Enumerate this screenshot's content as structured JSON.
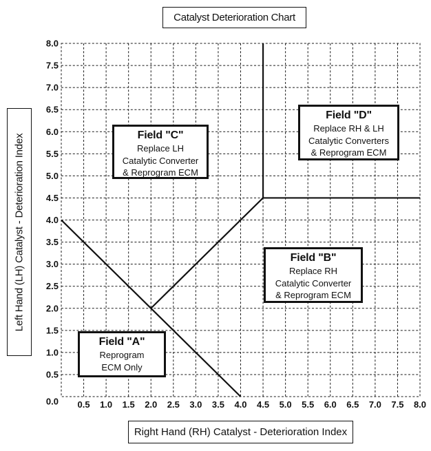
{
  "chart_data": {
    "type": "line",
    "title": "Catalyst Deterioration Chart",
    "xlabel": "Right Hand (RH) Catalyst - Deterioration Index",
    "ylabel": "Left Hand (LH) Catalyst - Deterioration Index",
    "xlim": [
      0,
      8
    ],
    "ylim": [
      0,
      8
    ],
    "tick_step": 0.5,
    "x_tick_labels": [
      "0.5",
      "1.0",
      "1.5",
      "2.0",
      "2.5",
      "3.0",
      "3.5",
      "4.0",
      "4.5",
      "5.0",
      "5.5",
      "6.0",
      "6.5",
      "7.0",
      "7.5",
      "8.0"
    ],
    "y_tick_labels": [
      "0.0",
      "0.5",
      "1.0",
      "1.5",
      "2.0",
      "2.5",
      "3.0",
      "3.5",
      "4.0",
      "4.5",
      "5.0",
      "5.5",
      "6.0",
      "6.5",
      "7.0",
      "7.5",
      "8.0"
    ],
    "grid": "dashed",
    "legend": "none",
    "boundary_lines": [
      {
        "name": "field-a-upper-boundary",
        "x1": 0,
        "y1": 4,
        "x2": 4,
        "y2": 0
      },
      {
        "name": "field-b-c-boundary",
        "x1": 2,
        "y1": 2,
        "x2": 4.5,
        "y2": 4.5
      },
      {
        "name": "field-d-left-boundary",
        "x1": 4.5,
        "y1": 4.5,
        "x2": 4.5,
        "y2": 8
      },
      {
        "name": "field-d-lower-boundary",
        "x1": 4.5,
        "y1": 4.5,
        "x2": 8,
        "y2": 4.5
      }
    ],
    "fields": [
      {
        "id": "A",
        "title": "Field \"A\"",
        "lines": [
          "Reprogram",
          "ECM Only"
        ]
      },
      {
        "id": "B",
        "title": "Field \"B\"",
        "lines": [
          "Replace RH",
          "Catalytic Converter",
          "& Reprogram ECM"
        ]
      },
      {
        "id": "C",
        "title": "Field \"C\"",
        "lines": [
          "Replace LH",
          "Catalytic Converter",
          "& Reprogram ECM"
        ]
      },
      {
        "id": "D",
        "title": "Field \"D\"",
        "lines": [
          "Replace RH & LH",
          "Catalytic Converters",
          "& Reprogram ECM"
        ]
      }
    ],
    "colors": {
      "line": "#111111",
      "grid": "#1a1a1a",
      "text": "#111111",
      "background": "#ffffff"
    }
  }
}
